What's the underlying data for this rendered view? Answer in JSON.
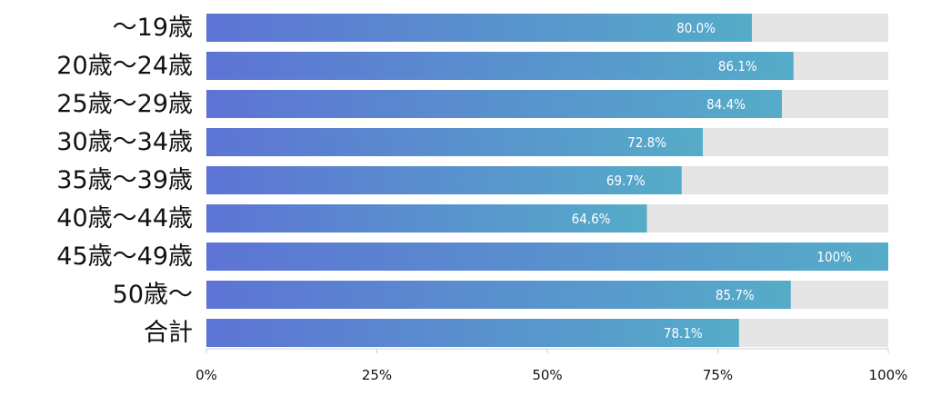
{
  "chart_data": {
    "type": "bar",
    "orientation": "horizontal",
    "categories": [
      "～19歳",
      "20歳～24歳",
      "25歳～29歳",
      "30歳～34歳",
      "35歳～39歳",
      "40歳～44歳",
      "45歳～49歳",
      "50歳～",
      "合計"
    ],
    "values": [
      80.0,
      86.1,
      84.4,
      72.8,
      69.7,
      64.6,
      100,
      85.7,
      78.1
    ],
    "value_labels": [
      "80.0%",
      "86.1%",
      "84.4%",
      "72.8%",
      "69.7%",
      "64.6%",
      "100%",
      "85.7%",
      "78.1%"
    ],
    "xlim": [
      0,
      100
    ],
    "x_ticks": [
      0,
      25,
      50,
      75,
      100
    ],
    "x_tick_labels": [
      "0%",
      "25%",
      "50%",
      "75%",
      "100%"
    ],
    "title": "",
    "xlabel": "",
    "ylabel": "",
    "grid": false,
    "colors": {
      "bar_start": "#5d74d4",
      "bar_end": "#55acc8",
      "track": "#e4e4e4",
      "axis": "#cccccc",
      "label": "#111111",
      "value_text": "#ffffff"
    }
  }
}
